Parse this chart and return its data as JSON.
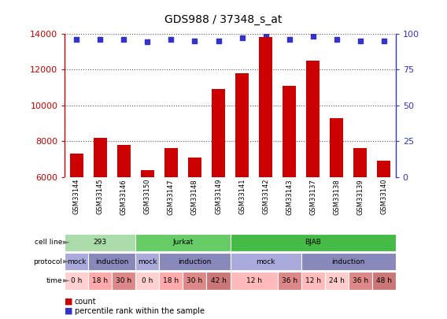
{
  "title": "GDS988 / 37348_s_at",
  "samples": [
    "GSM33144",
    "GSM33145",
    "GSM33146",
    "GSM33150",
    "GSM33147",
    "GSM33148",
    "GSM33149",
    "GSM33141",
    "GSM33142",
    "GSM33143",
    "GSM33137",
    "GSM33138",
    "GSM33139",
    "GSM33140"
  ],
  "counts": [
    7300,
    8200,
    7800,
    6400,
    7600,
    7100,
    10900,
    11800,
    13800,
    11100,
    12500,
    9300,
    7600,
    6900
  ],
  "percentile_ranks": [
    96,
    96,
    96,
    94,
    96,
    95,
    95,
    97,
    100,
    96,
    98,
    96,
    95,
    95
  ],
  "ylim_left": [
    6000,
    14000
  ],
  "ylim_right": [
    0,
    100
  ],
  "yticks_left": [
    6000,
    8000,
    10000,
    12000,
    14000
  ],
  "yticks_right": [
    0,
    25,
    50,
    75,
    100
  ],
  "bar_color": "#cc0000",
  "dot_color": "#3333cc",
  "cell_line_groups": [
    {
      "label": "293",
      "start": 0,
      "end": 3,
      "color": "#aaddaa"
    },
    {
      "label": "Jurkat",
      "start": 3,
      "end": 7,
      "color": "#66cc66"
    },
    {
      "label": "BJAB",
      "start": 7,
      "end": 14,
      "color": "#44bb44"
    }
  ],
  "protocol_groups": [
    {
      "label": "mock",
      "start": 0,
      "end": 1,
      "color": "#aaaadd"
    },
    {
      "label": "induction",
      "start": 1,
      "end": 3,
      "color": "#8888bb"
    },
    {
      "label": "mock",
      "start": 3,
      "end": 4,
      "color": "#aaaadd"
    },
    {
      "label": "induction",
      "start": 4,
      "end": 7,
      "color": "#8888bb"
    },
    {
      "label": "mock",
      "start": 7,
      "end": 10,
      "color": "#aaaadd"
    },
    {
      "label": "induction",
      "start": 10,
      "end": 14,
      "color": "#8888bb"
    }
  ],
  "time_groups": [
    {
      "label": "0 h",
      "start": 0,
      "end": 1,
      "color": "#ffd0d0"
    },
    {
      "label": "18 h",
      "start": 1,
      "end": 2,
      "color": "#ffaaaa"
    },
    {
      "label": "30 h",
      "start": 2,
      "end": 3,
      "color": "#dd8888"
    },
    {
      "label": "0 h",
      "start": 3,
      "end": 4,
      "color": "#ffd0d0"
    },
    {
      "label": "18 h",
      "start": 4,
      "end": 5,
      "color": "#ffaaaa"
    },
    {
      "label": "30 h",
      "start": 5,
      "end": 6,
      "color": "#dd8888"
    },
    {
      "label": "42 h",
      "start": 6,
      "end": 7,
      "color": "#cc7777"
    },
    {
      "label": "12 h",
      "start": 7,
      "end": 9,
      "color": "#ffbbbb"
    },
    {
      "label": "36 h",
      "start": 9,
      "end": 10,
      "color": "#dd8888"
    },
    {
      "label": "12 h",
      "start": 10,
      "end": 11,
      "color": "#ffbbbb"
    },
    {
      "label": "24 h",
      "start": 11,
      "end": 12,
      "color": "#ffcccc"
    },
    {
      "label": "36 h",
      "start": 12,
      "end": 13,
      "color": "#dd8888"
    },
    {
      "label": "48 h",
      "start": 13,
      "end": 14,
      "color": "#cc7777"
    }
  ],
  "sample_label_bg": "#cccccc",
  "bg_color": "#ffffff",
  "grid_color": "#555555",
  "left_axis_color": "#cc0000",
  "right_axis_color": "#3333cc",
  "bar_width": 0.55
}
